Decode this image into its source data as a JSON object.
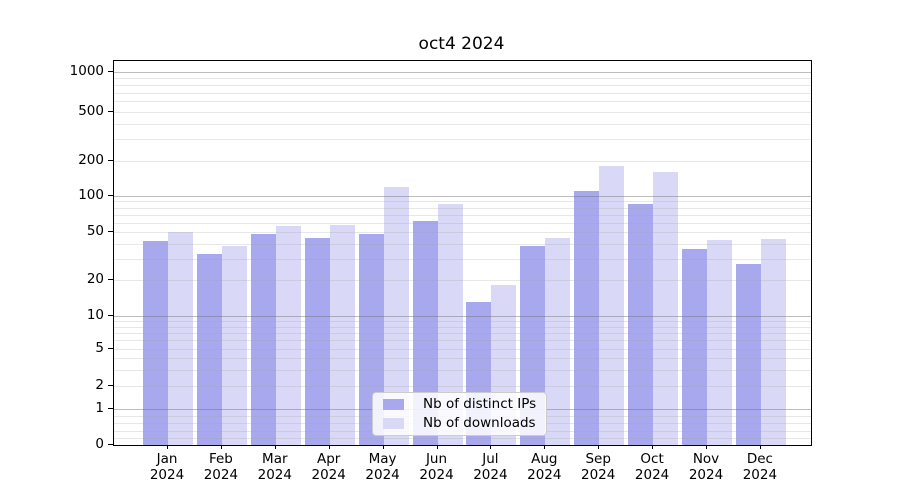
{
  "chart_data": {
    "type": "bar",
    "title": "oct4 2024",
    "yscale": "symlog",
    "grid": "horizontal major+minor",
    "categories": [
      "Jan 2024",
      "Feb 2024",
      "Mar 2024",
      "Apr 2024",
      "May 2024",
      "Jun 2024",
      "Jul 2024",
      "Aug 2024",
      "Sep 2024",
      "Oct 2024",
      "Nov 2024",
      "Dec 2024"
    ],
    "series": [
      {
        "name": "Nb of distinct IPs",
        "color": "#a8a8ef",
        "values": [
          42,
          33,
          48,
          45,
          48,
          62,
          13,
          38,
          110,
          85,
          36,
          27
        ]
      },
      {
        "name": "Nb of downloads",
        "color": "#d9d9f7",
        "values": [
          50,
          38,
          56,
          57,
          120,
          85,
          18,
          45,
          180,
          160,
          43,
          44
        ]
      }
    ],
    "y_ticks": [
      0,
      1,
      2,
      5,
      10,
      20,
      50,
      100,
      200,
      500,
      1000
    ],
    "ylim": [
      0,
      1200
    ],
    "legend_position": "lower center"
  }
}
